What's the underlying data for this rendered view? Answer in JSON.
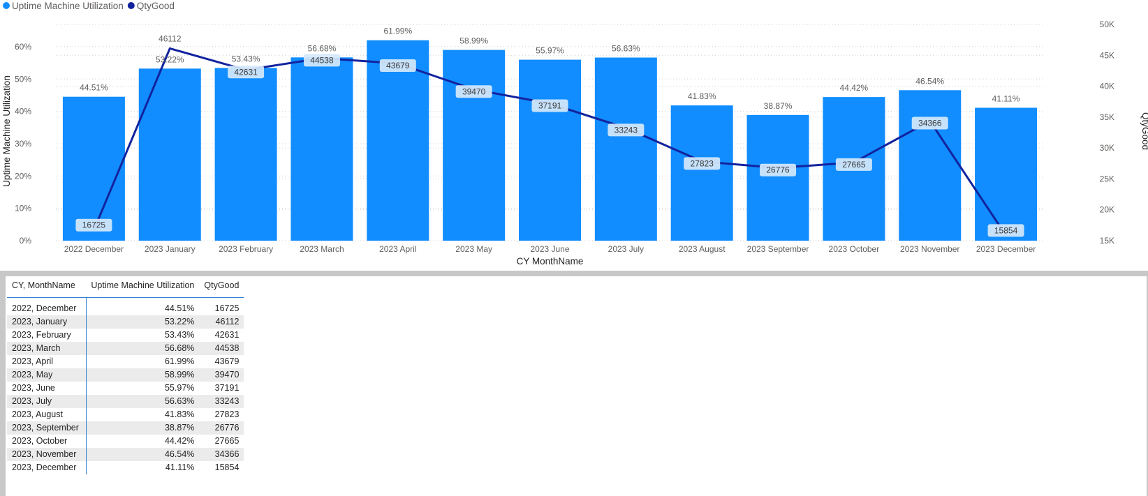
{
  "chart_data": {
    "type": "bar+line",
    "legend": {
      "position": "top-left",
      "items": [
        {
          "label": "Uptime Machine Utilization",
          "color": "#118DFF"
        },
        {
          "label": "QtyGood",
          "color": "#12239E"
        }
      ]
    },
    "categories": [
      "2022 December",
      "2023 January",
      "2023 February",
      "2023 March",
      "2023 April",
      "2023 May",
      "2023 June",
      "2023 July",
      "2023 August",
      "2023 September",
      "2023 October",
      "2023 November",
      "2023 December"
    ],
    "series": [
      {
        "name": "Uptime Machine Utilization",
        "type": "bar",
        "axis": "left",
        "color": "#118DFF",
        "values": [
          44.51,
          53.22,
          53.43,
          56.68,
          61.99,
          58.99,
          55.97,
          56.63,
          41.83,
          38.87,
          44.42,
          46.54,
          41.11
        ],
        "labels": [
          "44.51%",
          "53.22%",
          "53.43%",
          "56.68%",
          "61.99%",
          "58.99%",
          "55.97%",
          "56.63%",
          "41.83%",
          "38.87%",
          "44.42%",
          "46.54%",
          "41.11%"
        ]
      },
      {
        "name": "QtyGood",
        "type": "line",
        "axis": "right",
        "color": "#12239E",
        "values": [
          16725,
          46112,
          42631,
          44538,
          43679,
          39470,
          37191,
          33243,
          27823,
          26776,
          27665,
          34366,
          15854
        ]
      }
    ],
    "xlabel": "CY MonthName",
    "ylabel": "Uptime Machine Utilization",
    "y2label": "QtyGood",
    "ylim": [
      0,
      68
    ],
    "y2lim": [
      15000,
      50000
    ],
    "yticks": [
      "0%",
      "10%",
      "20%",
      "30%",
      "40%",
      "50%",
      "60%"
    ],
    "yticks_values": [
      0,
      10,
      20,
      30,
      40,
      50,
      60
    ],
    "y2ticks": [
      "15K",
      "20K",
      "25K",
      "30K",
      "35K",
      "40K",
      "45K",
      "50K"
    ],
    "y2ticks_values": [
      15000,
      20000,
      25000,
      30000,
      35000,
      40000,
      45000,
      50000
    ],
    "grid": true
  },
  "table": {
    "columns": [
      "CY, MonthName",
      "Uptime Machine Utilization",
      "QtyGood"
    ],
    "rows": [
      [
        "2022, December",
        "44.51%",
        "16725"
      ],
      [
        "2023, January",
        "53.22%",
        "46112"
      ],
      [
        "2023, February",
        "53.43%",
        "42631"
      ],
      [
        "2023, March",
        "56.68%",
        "44538"
      ],
      [
        "2023, April",
        "61.99%",
        "43679"
      ],
      [
        "2023, May",
        "58.99%",
        "39470"
      ],
      [
        "2023, June",
        "55.97%",
        "37191"
      ],
      [
        "2023, July",
        "56.63%",
        "33243"
      ],
      [
        "2023, August",
        "41.83%",
        "27823"
      ],
      [
        "2023, September",
        "38.87%",
        "26776"
      ],
      [
        "2023, October",
        "44.42%",
        "27665"
      ],
      [
        "2023, November",
        "46.54%",
        "34366"
      ],
      [
        "2023, December",
        "41.11%",
        "15854"
      ]
    ]
  }
}
